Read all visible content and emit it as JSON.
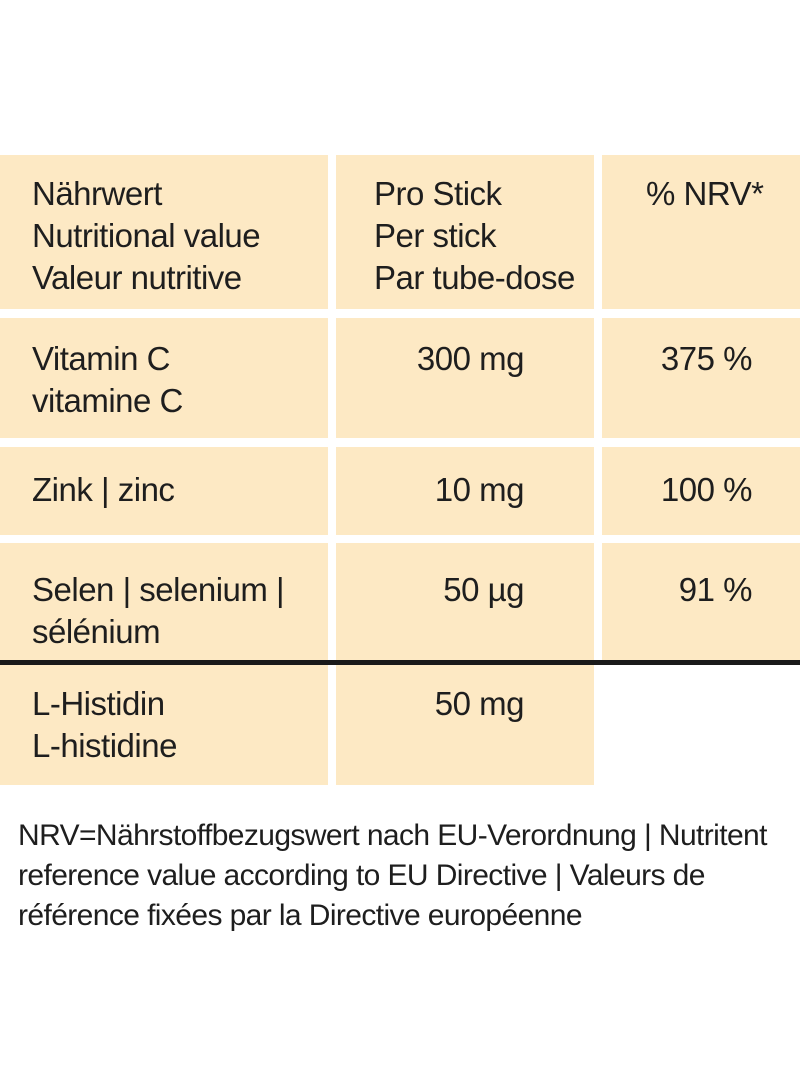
{
  "header": {
    "nutrient_lines": [
      "Nährwert",
      "Nutritional value",
      "Valeur nutritive"
    ],
    "amount_lines": [
      "Pro Stick",
      "Per stick",
      "Par tube-dose"
    ],
    "nrv_label": "% NRV*"
  },
  "rows": [
    {
      "name_lines": [
        "Vitamin C",
        "vitamine C"
      ],
      "amount": "300 mg",
      "nrv": "375 %"
    },
    {
      "name_lines": [
        "Zink | zinc"
      ],
      "amount": "10 mg",
      "nrv": "100 %"
    },
    {
      "name_lines": [
        "Selen | selenium |",
        "sélénium"
      ],
      "amount": "50 µg",
      "nrv": "91 %"
    },
    {
      "name_lines": [
        "L-Histidin",
        "L-histidine"
      ],
      "amount": "50 mg",
      "nrv": ""
    }
  ],
  "footnote_lines": [
    "NRV=Nährstoffbezugswert nach EU-Verordnung | Nutritent",
    "reference value according to EU Directive | Valeurs de",
    "référence fixées par la Directive européenne"
  ],
  "colors": {
    "cell_background": "#fde9c4",
    "separator": "#1a1a1a",
    "text": "#1e1e1e"
  }
}
